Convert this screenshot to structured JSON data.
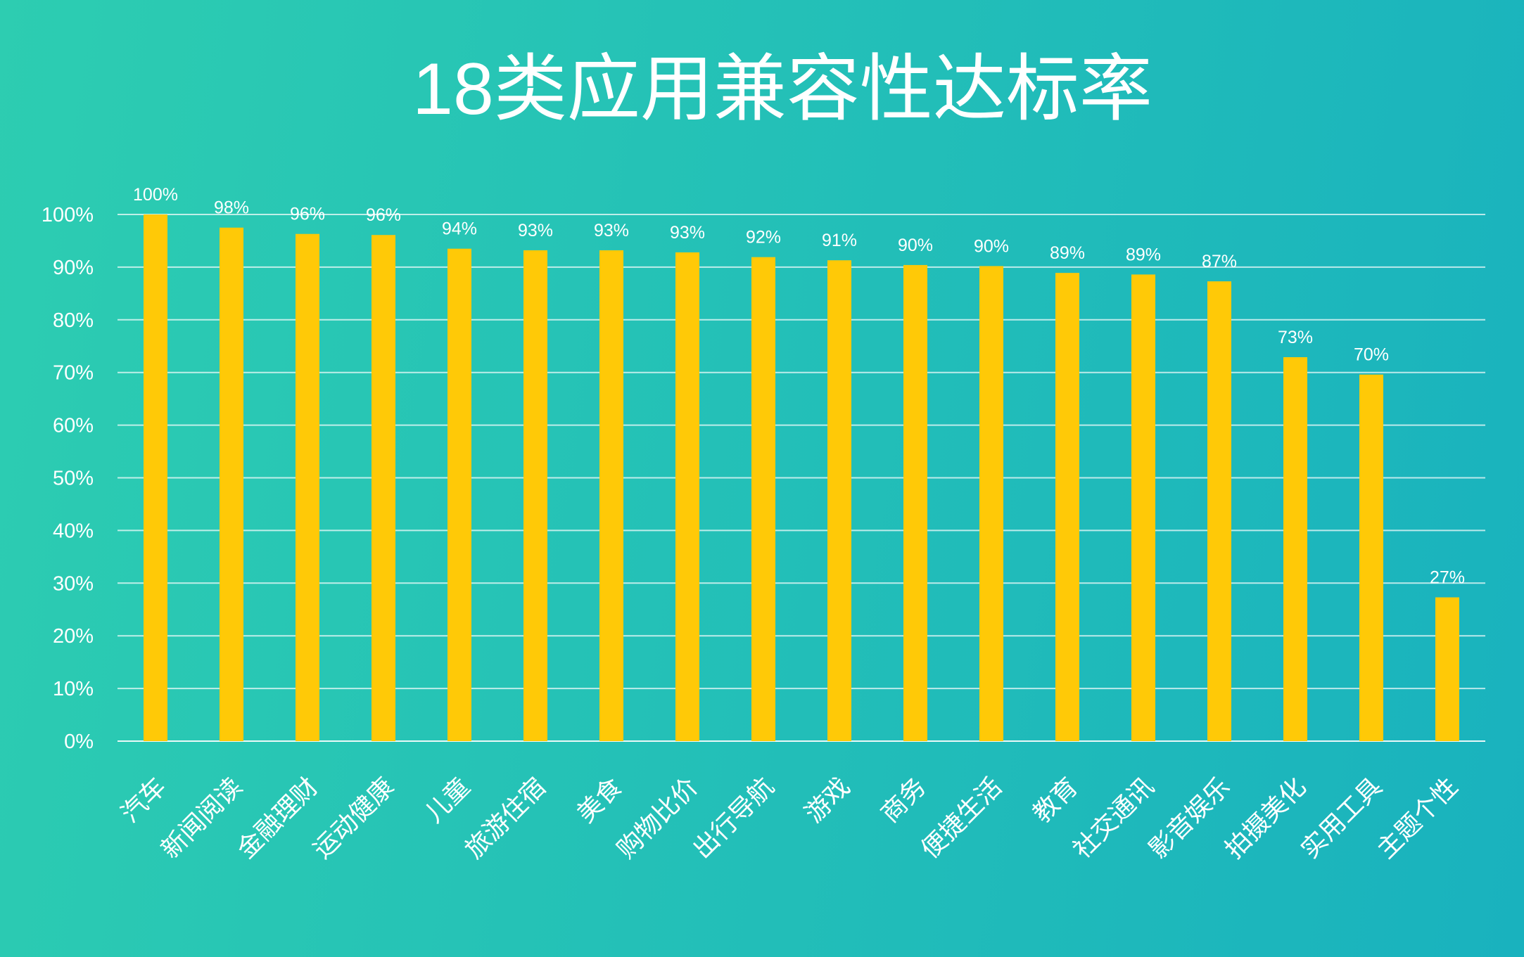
{
  "colors": {
    "bar": "#ffc907",
    "grid": "#ffffff",
    "text": "#ffffff",
    "background_left": "#2dcdb1",
    "background_right": "#19b2be"
  },
  "chart_data": {
    "type": "bar",
    "title": "18类应用兼容性达标率",
    "categories": [
      "汽车",
      "新闻阅读",
      "金融理财",
      "运动健康",
      "儿童",
      "旅游住宿",
      "美食",
      "购物比价",
      "出行导航",
      "游戏",
      "商务",
      "便捷生活",
      "教育",
      "社交通讯",
      "影音娱乐",
      "拍摄美化",
      "实用工具",
      "主题个性"
    ],
    "values": [
      100,
      97.5,
      96.3,
      96.1,
      93.5,
      93.2,
      93.2,
      92.8,
      91.9,
      91.3,
      90.4,
      90.2,
      88.9,
      88.6,
      87.3,
      72.9,
      69.6,
      27.3
    ],
    "data_labels": [
      "100%",
      "98%",
      "96%",
      "96%",
      "94%",
      "93%",
      "93%",
      "93%",
      "92%",
      "91%",
      "90%",
      "90%",
      "89%",
      "89%",
      "87%",
      "73%",
      "70%",
      "27%"
    ],
    "ylim": [
      0,
      100
    ],
    "yticks": [
      0,
      10,
      20,
      30,
      40,
      50,
      60,
      70,
      80,
      90,
      100
    ],
    "ytick_labels": [
      "0%",
      "10%",
      "20%",
      "30%",
      "40%",
      "50%",
      "60%",
      "70%",
      "80%",
      "90%",
      "100%"
    ],
    "grid": true
  }
}
